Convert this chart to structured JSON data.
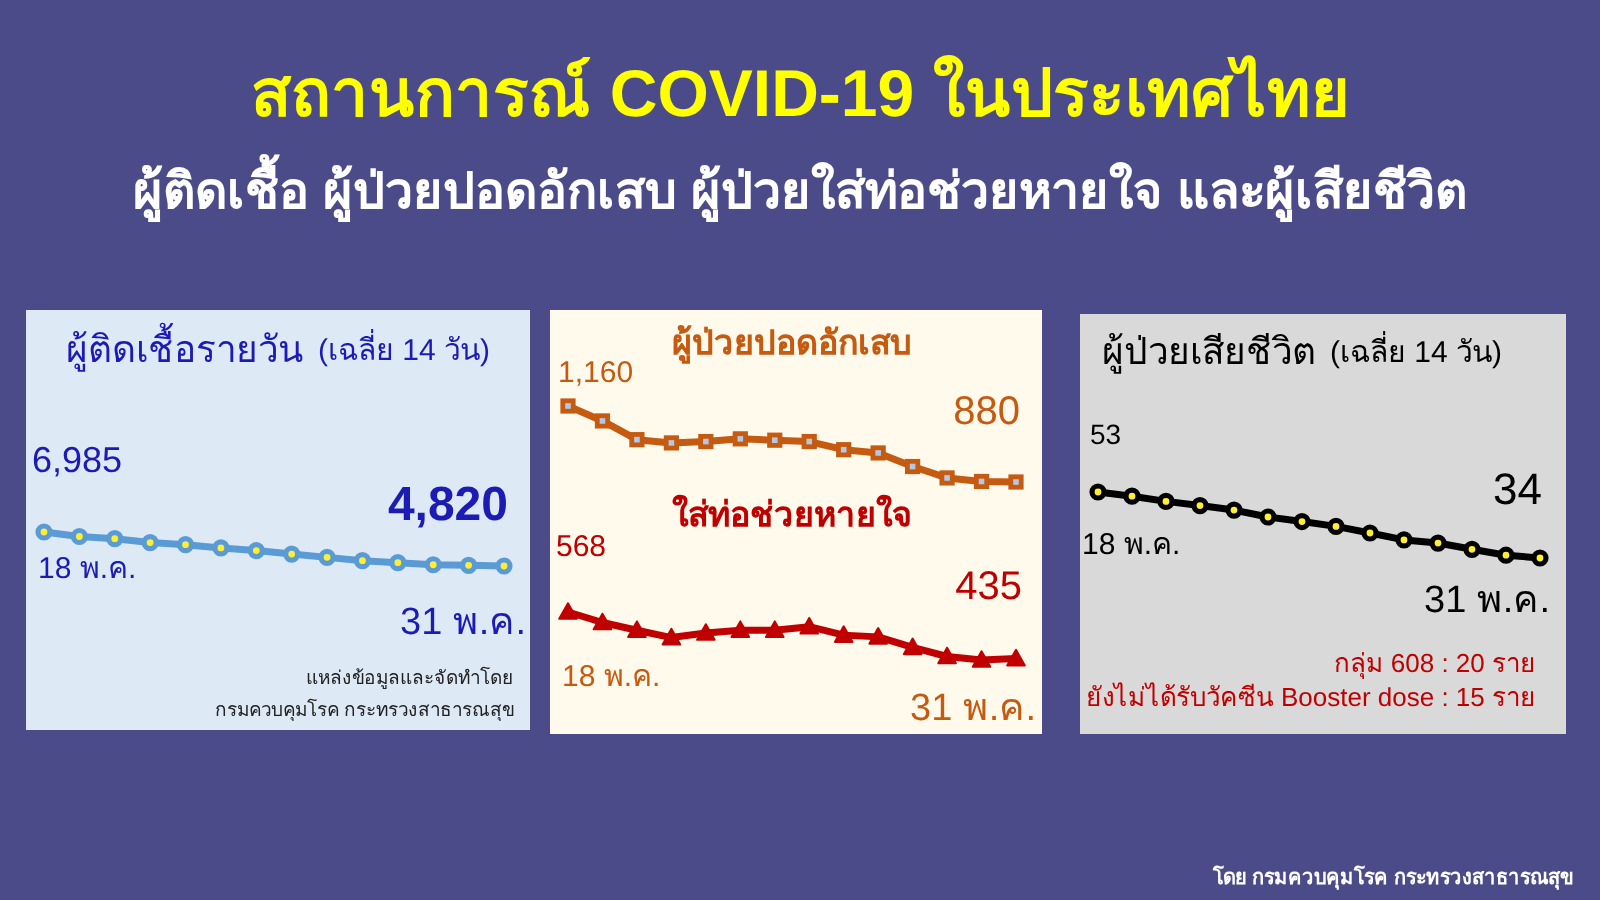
{
  "chart_data": [
    {
      "type": "other",
      "title": "สถานการณ์ COVID-19 ในประเทศไทย",
      "subtitle": "ผู้ติดเชื้อ ผู้ป่วยปอดอักเสบ ผู้ป่วยใส่ท่อช่วยหายใจ และผู้เสียชีวิต"
    },
    {
      "type": "line",
      "title": "ผู้ติดเชื้อรายวัน",
      "subtitle": "(เฉลี่ย 14 วัน)",
      "categories": [
        null,
        null,
        null,
        null,
        null,
        null,
        null,
        null,
        null,
        null,
        null,
        null,
        null,
        null
      ],
      "marker": "circle",
      "series": [
        {
          "color": "#5b9bd5",
          "values": [
            6985,
            6700,
            6560,
            6310,
            6180,
            5970,
            5800,
            5580,
            5370,
            5160,
            5030,
            4900,
            4860,
            4820
          ],
          "value_labels": [
            "6,985",
            null,
            null,
            null,
            null,
            null,
            null,
            null,
            null,
            null,
            null,
            null,
            null,
            "4,820"
          ]
        }
      ],
      "annotations": [
        {
          "text": "18 พ.ค.",
          "y": 6985
        },
        {
          "text": "31 พ.ค.",
          "y": 4820
        },
        "แหล่งข้อมูลและจัดทำโดย",
        "กรมควบคุมโรค กระทรวงสาธารณสุข"
      ]
    },
    {
      "type": "line",
      "categories": [
        null,
        null,
        null,
        null,
        null,
        null,
        null,
        null,
        null,
        null,
        null,
        null,
        null,
        null
      ],
      "marker": "square",
      "series": [
        {
          "name": "ผู้ป่วยปอดอักเสบ",
          "color": "#c55a11",
          "values": [
            1160,
            1105,
            1036,
            1024,
            1029,
            1039,
            1034,
            1029,
            999,
            987,
            937,
            895,
            882,
            880
          ],
          "value_labels": [
            "1,160",
            null,
            null,
            null,
            null,
            null,
            null,
            null,
            null,
            null,
            null,
            null,
            null,
            "880"
          ]
        }
      ]
    },
    {
      "type": "line",
      "categories": [
        null,
        null,
        null,
        null,
        null,
        null,
        null,
        null,
        null,
        null,
        null,
        null,
        null,
        null
      ],
      "marker": "triangle",
      "series": [
        {
          "name": "ใส่ท่อช่วยหายใจ",
          "color": "#c00000",
          "values": [
            568,
            538,
            516,
            495,
            508,
            516,
            516,
            526,
            502,
            497,
            467,
            441,
            431,
            435
          ],
          "value_labels": [
            "568",
            null,
            null,
            null,
            null,
            null,
            null,
            null,
            null,
            null,
            null,
            null,
            null,
            "435"
          ]
        }
      ],
      "annotations": [
        {
          "text": "18 พ.ค.",
          "y": 568
        },
        {
          "text": "31 พ.ค.",
          "y": 435
        }
      ]
    },
    {
      "type": "line",
      "title": "ผู้ป่วยเสียชีวิต",
      "subtitle": "(เฉลี่ย 14 วัน)",
      "categories": [
        null,
        null,
        null,
        null,
        null,
        null,
        null,
        null,
        null,
        null,
        null,
        null,
        null,
        null
      ],
      "marker": "circle",
      "series": [
        {
          "color": "#000000",
          "values": [
            53,
            51.8,
            50.3,
            49.1,
            47.8,
            45.8,
            44.5,
            43.1,
            41.2,
            39.2,
            38.3,
            36.5,
            34.8,
            34
          ],
          "value_labels": [
            "53",
            null,
            null,
            null,
            null,
            null,
            null,
            null,
            null,
            null,
            null,
            null,
            null,
            "34"
          ]
        }
      ],
      "annotations": [
        {
          "text": "18 พ.ค.",
          "y": 53
        },
        {
          "text": "31 พ.ค.",
          "y": 34
        },
        "กลุ่ม 608 : 20 ราย",
        "ยังไม่ได้รับวัคซีน Booster dose : 15 ราย"
      ]
    },
    {
      "type": "other",
      "annotations": [
        "โดย กรมควบคุมโรค กระทรวงสาธารณสุข"
      ]
    }
  ]
}
